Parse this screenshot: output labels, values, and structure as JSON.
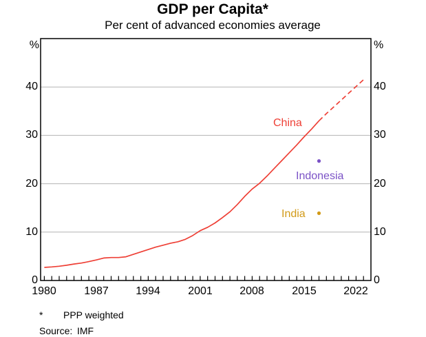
{
  "title": "GDP per Capita*",
  "subtitle": "Per cent of advanced economies average",
  "footnote": {
    "marker": "*",
    "text": "PPP weighted"
  },
  "source": {
    "label": "Source:",
    "value": "IMF"
  },
  "axes": {
    "unit_left": "%",
    "unit_right": "%",
    "y_ticks": [
      "0",
      "10",
      "20",
      "30",
      "40"
    ],
    "x_ticks": [
      "1980",
      "1987",
      "1994",
      "2001",
      "2008",
      "2015",
      "2022"
    ]
  },
  "chart_data": {
    "type": "line",
    "title": "GDP per Capita*",
    "subtitle": "Per cent of advanced economies average",
    "ylabel": "%",
    "ylim": [
      0,
      50
    ],
    "xlim": [
      1979.5,
      2024.0
    ],
    "grid": "horizontal",
    "y_gridlines": [
      10,
      20,
      30,
      40
    ],
    "gridline_color": "#b3b3b3",
    "x_minor_ticks": {
      "start": 1980,
      "end": 2023,
      "step": 1
    },
    "legend_position": "inline-annotations",
    "series": [
      {
        "id": "china",
        "name": "China",
        "type": "line",
        "style": "solid",
        "color": "#ee3f35",
        "x": [
          1980,
          1981,
          1982,
          1983,
          1984,
          1985,
          1986,
          1987,
          1988,
          1989,
          1990,
          1991,
          1992,
          1993,
          1994,
          1995,
          1996,
          1997,
          1998,
          1999,
          2000,
          2001,
          2002,
          2003,
          2004,
          2005,
          2006,
          2007,
          2008,
          2009,
          2010,
          2011,
          2012,
          2013,
          2014,
          2015,
          2016,
          2017
        ],
        "values": [
          2.7,
          2.8,
          2.95,
          3.15,
          3.4,
          3.6,
          3.9,
          4.25,
          4.65,
          4.75,
          4.75,
          4.9,
          5.4,
          5.9,
          6.4,
          6.9,
          7.3,
          7.7,
          8.0,
          8.5,
          9.3,
          10.3,
          11.0,
          11.9,
          13.0,
          14.2,
          15.7,
          17.4,
          18.9,
          20.1,
          21.6,
          23.2,
          24.8,
          26.4,
          28.0,
          29.7,
          31.3,
          33.0
        ]
      },
      {
        "id": "china-forecast",
        "name": "China forecast",
        "type": "line",
        "style": "dashed",
        "color": "#ee3f35",
        "x": [
          2017,
          2018,
          2019,
          2020,
          2021,
          2022,
          2023
        ],
        "values": [
          33.0,
          34.5,
          35.9,
          37.3,
          38.7,
          40.1,
          41.5
        ]
      },
      {
        "id": "indonesia",
        "name": "Indonesia",
        "type": "point",
        "color": "#7b52c6",
        "x": [
          2017
        ],
        "values": [
          24.7
        ]
      },
      {
        "id": "india",
        "name": "India",
        "type": "point",
        "color": "#d29a17",
        "x": [
          2017
        ],
        "values": [
          13.9
        ]
      }
    ],
    "annotations": [
      {
        "id": "china",
        "text": "China",
        "color": "#ee3f35"
      },
      {
        "id": "indonesia",
        "text": "Indonesia",
        "color": "#7b52c6"
      },
      {
        "id": "india",
        "text": "India",
        "color": "#d29a17"
      }
    ]
  }
}
